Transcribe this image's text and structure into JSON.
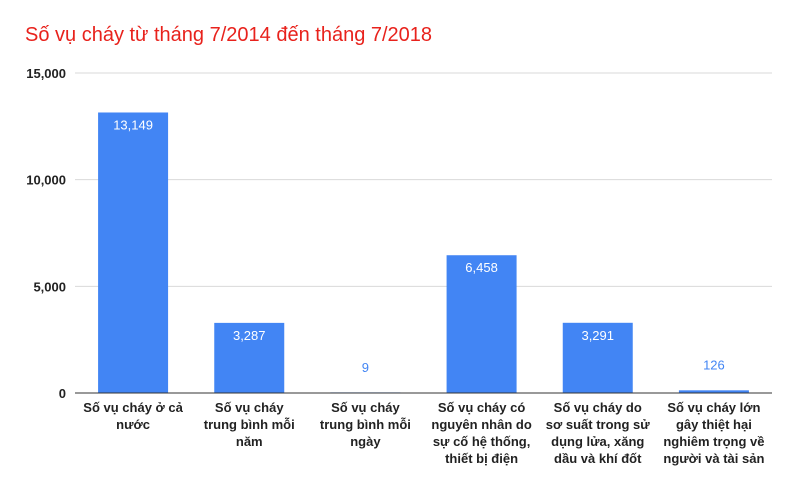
{
  "title": "Số vụ cháy từ tháng 7/2014 đến tháng 7/2018",
  "colors": {
    "title": "#e8221c",
    "bar": "#4285f4",
    "label_inside": "#ffffff",
    "label_outside": "#4285f4",
    "grid": "#d9d9d9",
    "axis": "#333333"
  },
  "chart_data": {
    "type": "bar",
    "title": "Số vụ cháy từ tháng 7/2014 đến tháng 7/2018",
    "xlabel": "",
    "ylabel": "",
    "ylim": [
      0,
      15000
    ],
    "yticks": [
      "0",
      "5,000",
      "10,000",
      "15,000"
    ],
    "grid": true,
    "legend": "none",
    "categories": [
      [
        "Số vụ cháy ở cả",
        "nước"
      ],
      [
        "Số vụ cháy",
        "trung bình mỗi",
        "năm"
      ],
      [
        "Số vụ cháy",
        "trung bình mỗi",
        "ngày"
      ],
      [
        "Số vụ cháy có",
        "nguyên nhân do",
        "sự cố hệ thống,",
        "thiết bị điện"
      ],
      [
        "Số vụ cháy do",
        "sơ suất trong sử",
        "dụng lửa, xăng",
        "dầu và khí đốt"
      ],
      [
        "Số vụ cháy lớn",
        "gây thiệt hại",
        "nghiêm trọng về",
        "người và tài sản"
      ]
    ],
    "values": [
      13149,
      3287,
      9,
      6458,
      3291,
      126
    ],
    "data_labels": [
      "13,149",
      "3,287",
      "9",
      "6,458",
      "3,291",
      "126"
    ]
  }
}
